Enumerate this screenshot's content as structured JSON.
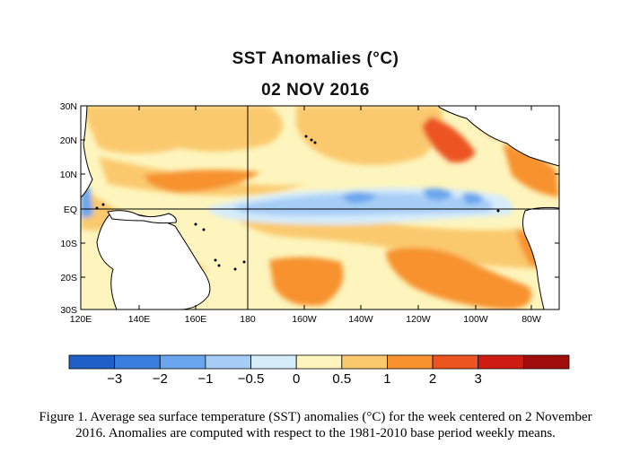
{
  "title": {
    "line1": "SST Anomalies (°C)",
    "line2": "02 NOV 2016"
  },
  "map": {
    "lat_labels": [
      "30N",
      "20N",
      "10N",
      "EQ",
      "10S",
      "20S",
      "30S"
    ],
    "lon_labels": [
      "120E",
      "140E",
      "160E",
      "180",
      "160W",
      "140W",
      "120W",
      "100W",
      "80W"
    ]
  },
  "colorbar": {
    "colors": [
      "#1f5fc8",
      "#3a7fe0",
      "#6aa6ee",
      "#a6cdf6",
      "#d6ecfb",
      "#fdf5bd",
      "#fbc96d",
      "#f7922f",
      "#ec5420",
      "#cf1c12",
      "#a10d0d"
    ],
    "labels": [
      "−3",
      "−2",
      "−1",
      "−0.5",
      "0",
      "0.5",
      "1",
      "2",
      "3"
    ]
  },
  "caption": {
    "line1": "Figure 1. Average sea surface temperature (SST) anomalies (°C) for the week centered on 2 November",
    "line2": "2016.  Anomalies are computed with respect to the 1981-2010 base period weekly means."
  }
}
